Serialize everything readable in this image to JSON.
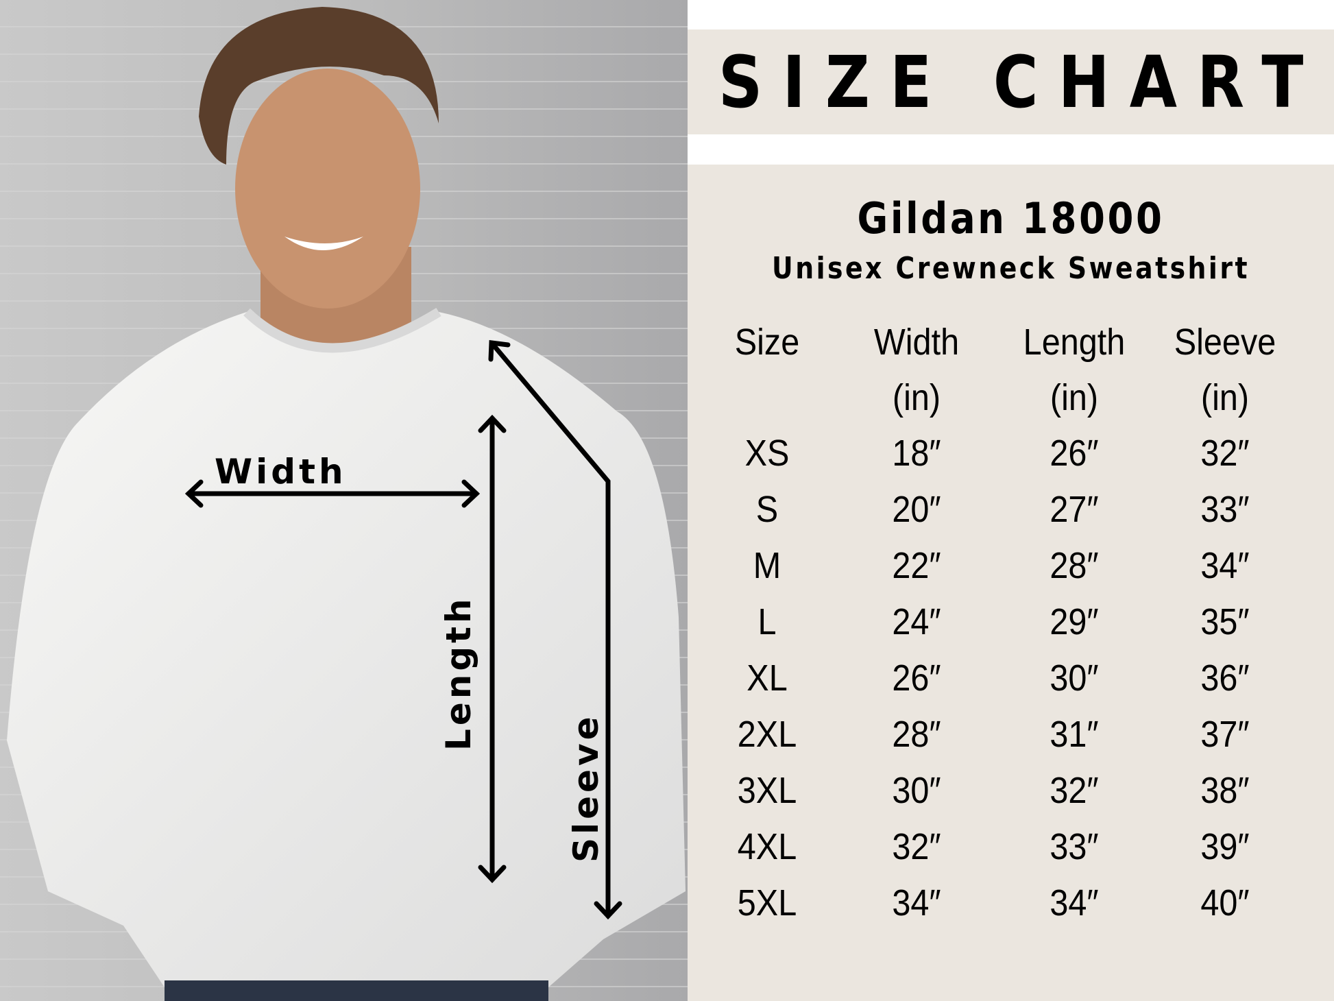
{
  "title": "SIZE CHART",
  "product": "Gildan 18000",
  "subtitle": "Unisex Crewneck Sweatshirt",
  "colors": {
    "panel_background": "#ebe6df",
    "text": "#000000",
    "sweatshirt": "#f2f2f0",
    "wall": "#b8b8b8"
  },
  "photo_labels": {
    "width": "Width",
    "length": "Length",
    "sleeve": "Sleeve"
  },
  "table": {
    "headers": [
      "Size",
      "Width",
      "Length",
      "Sleeve"
    ],
    "units": [
      "",
      "(in)",
      "(in)",
      "(in)"
    ],
    "rows": [
      [
        "XS",
        "18″",
        "26″",
        "32″"
      ],
      [
        "S",
        "20″",
        "27″",
        "33″"
      ],
      [
        "M",
        "22″",
        "28″",
        "34″"
      ],
      [
        "L",
        "24″",
        "29″",
        "35″"
      ],
      [
        "XL",
        "26″",
        "30″",
        "36″"
      ],
      [
        "2XL",
        "28″",
        "31″",
        "37″"
      ],
      [
        "3XL",
        "30″",
        "32″",
        "38″"
      ],
      [
        "4XL",
        "32″",
        "33″",
        "39″"
      ],
      [
        "5XL",
        "34″",
        "34″",
        "40″"
      ]
    ]
  }
}
